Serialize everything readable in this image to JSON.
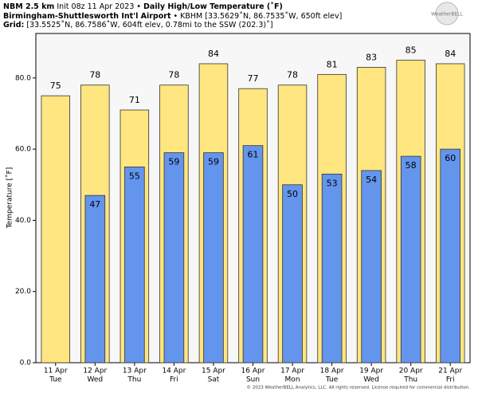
{
  "header": {
    "line1": [
      "NBM 2.5 km",
      " Init 08z 11 Apr 2023 • ",
      "Daily High/Low Temperature (˚F)"
    ],
    "line2": [
      "Birmingham-Shuttlesworth Int'l Airport",
      " • KBHM [33.5629˚N, 86.7535˚W, 650ft elev]"
    ],
    "line3": [
      "Grid:",
      " [33.5525˚N, 86.7586˚W, 604ft elev, 0.78mi to the SSW (202.3)˚]"
    ],
    "logo": "WeatherBELL"
  },
  "footer": "© 2023 WeatherBELL Analytics, LLC. All rights reserved. License required for commercial distribution.",
  "chart_data": {
    "type": "bar",
    "y_label": "Temperature [˚F]",
    "categories": [
      "11 Apr",
      "12 Apr",
      "13 Apr",
      "14 Apr",
      "15 Apr",
      "16 Apr",
      "17 Apr",
      "18 Apr",
      "19 Apr",
      "20 Apr",
      "21 Apr"
    ],
    "weekdays": [
      "Tue",
      "Wed",
      "Thu",
      "Fri",
      "Sat",
      "Sun",
      "Mon",
      "Tue",
      "Wed",
      "Thu",
      "Fri"
    ],
    "series": [
      {
        "name": "High",
        "color": "#ffe680",
        "values": [
          75,
          78,
          71,
          78,
          84,
          77,
          78,
          81,
          83,
          85,
          84
        ]
      },
      {
        "name": "Low",
        "color": "#6495ed",
        "values": [
          null,
          47,
          55,
          59,
          59,
          61,
          50,
          53,
          54,
          58,
          60
        ]
      }
    ],
    "ylim": [
      0,
      92.5
    ],
    "yticks": [
      {
        "value": 0,
        "label": "0.0"
      },
      {
        "value": 20,
        "label": "20.0"
      },
      {
        "value": 40,
        "label": "40.0"
      },
      {
        "value": 60,
        "label": "60.0"
      },
      {
        "value": 80,
        "label": "80.0"
      }
    ]
  }
}
